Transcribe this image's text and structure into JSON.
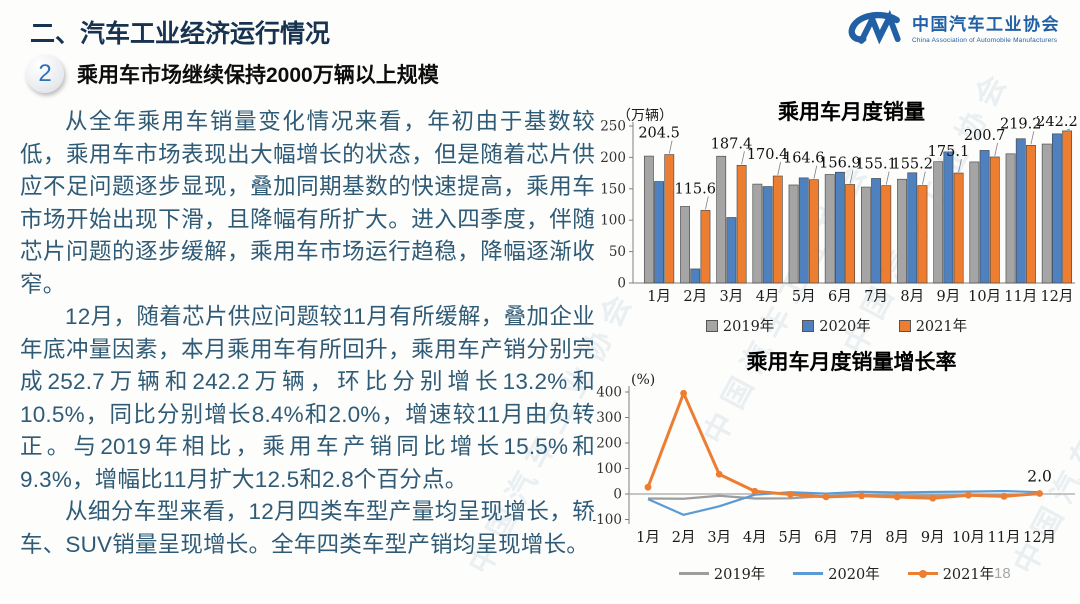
{
  "header": {
    "title": "二、汽车工业经济运行情况",
    "logo": {
      "name_cn": "中国汽车工业协会",
      "name_en": "China Association of Automobile Manufacturers"
    }
  },
  "section": {
    "number": "2",
    "heading": "乘用车市场继续保持2000万辆以上规模"
  },
  "paragraphs": [
    "从全年乘用车销量变化情况来看，年初由于基数较低，乘用车市场表现出大幅增长的状态，但是随着芯片供应不足问题逐步显现，叠加同期基数的快速提高，乘用车市场开始出现下滑，且降幅有所扩大。进入四季度，伴随芯片问题的逐步缓解，乘用车市场运行趋稳，降幅逐渐收窄。",
    "12月，随着芯片供应问题较11月有所缓解，叠加企业年底冲量因素，本月乘用车有所回升，乘用车产销分别完成252.7万辆和242.2万辆，环比分别增长13.2%和10.5%，同比分别增长8.4%和2.0%，增速较11月由负转正。与2019年相比，乘用车产销同比增长15.5%和9.3%，增幅比11月扩大12.5和2.8个百分点。",
    "从细分车型来看，12月四类车型产量均呈现增长，轿车、SUV销量呈现增长。全年四类车型产销均呈现增长。"
  ],
  "watermark": "中国汽车工业协会",
  "page_number": "18",
  "colors": {
    "title_blue": "#17334F",
    "body_text": "#2F5B76",
    "logo_blue": "#2260A5",
    "series_2019": "#A5A5A5",
    "series_2020": "#4E81BD",
    "series_2020_line": "#5B9BD5",
    "series_2021": "#ED7D31"
  },
  "chart_data": [
    {
      "type": "bar",
      "title": "乘用车月度销量",
      "unit": "（万辆）",
      "categories": [
        "1月",
        "2月",
        "3月",
        "4月",
        "5月",
        "6月",
        "7月",
        "8月",
        "9月",
        "10月",
        "11月",
        "12月"
      ],
      "series": [
        {
          "name": "2019年",
          "color": "#A5A5A5",
          "values": [
            202.1,
            121.9,
            201.9,
            157.5,
            156.1,
            172.8,
            152.8,
            165.3,
            193.1,
            192.8,
            205.7,
            221.3
          ]
        },
        {
          "name": "2020年",
          "color": "#4E81BD",
          "values": [
            161.6,
            22.4,
            104.3,
            153.6,
            167.4,
            176.4,
            166.5,
            175.5,
            208.8,
            211.1,
            229.7,
            237.5
          ]
        },
        {
          "name": "2021年",
          "color": "#ED7D31",
          "labeled": true,
          "values": [
            204.5,
            115.6,
            187.4,
            170.4,
            164.6,
            156.9,
            155.1,
            155.2,
            175.1,
            200.7,
            219.2,
            242.2
          ]
        }
      ],
      "ylim": [
        0,
        250
      ],
      "yticks": [
        0,
        50,
        100,
        150,
        200,
        250
      ],
      "grid": false,
      "legend_position": "bottom"
    },
    {
      "type": "line",
      "title": "乘用车月度销量增长率",
      "unit": "(%)",
      "categories": [
        "1月",
        "2月",
        "3月",
        "4月",
        "5月",
        "6月",
        "7月",
        "8月",
        "9月",
        "10月",
        "11月",
        "12月"
      ],
      "series": [
        {
          "name": "2019年",
          "color": "#9D9D9D",
          "marker": false,
          "values": [
            -17.7,
            -18.5,
            -6.9,
            -17.7,
            -16.9,
            -7.8,
            -3.9,
            -6.9,
            -6.3,
            -5.8,
            -5.4,
            -0.9
          ]
        },
        {
          "name": "2020年",
          "color": "#5B9BD5",
          "marker": false,
          "values": [
            -20.2,
            -81.7,
            -48.4,
            -2.6,
            7.0,
            1.8,
            8.5,
            6.0,
            8.0,
            9.3,
            11.6,
            7.2
          ]
        },
        {
          "name": "2021年",
          "color": "#ED7D31",
          "marker": true,
          "values": [
            26.8,
            395.0,
            77.4,
            10.8,
            -1.7,
            -11.1,
            -7.0,
            -11.7,
            -16.5,
            -5.0,
            -9.1,
            2.0
          ]
        }
      ],
      "ylim": [
        -100,
        400
      ],
      "yticks": [
        400,
        300,
        200,
        100,
        0,
        -100
      ],
      "grid": false,
      "annotation": {
        "text": "2.0"
      },
      "legend_position": "bottom"
    }
  ]
}
